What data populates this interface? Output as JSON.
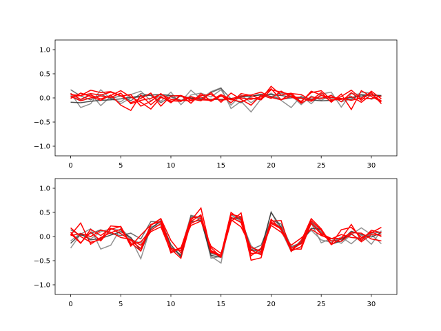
{
  "chart_data": [
    {
      "type": "line",
      "title": "",
      "xlabel": "",
      "ylabel": "",
      "xlim": [
        -1.55,
        32.55
      ],
      "ylim": [
        -1.2,
        1.2
      ],
      "xticks": [
        0,
        5,
        10,
        15,
        20,
        25,
        30
      ],
      "xtick_labels": [
        "0",
        "5",
        "10",
        "15",
        "20",
        "25",
        "30"
      ],
      "yticks": [
        1.0,
        0.5,
        0.0,
        -0.5,
        -1.0
      ],
      "ytick_labels": [
        "1.0",
        "0.5",
        "0.0",
        "−0.5",
        "−1.0"
      ],
      "grid": false,
      "x": [
        0,
        1,
        2,
        3,
        4,
        5,
        6,
        7,
        8,
        9,
        10,
        11,
        12,
        13,
        14,
        15,
        16,
        17,
        18,
        19,
        20,
        21,
        22,
        23,
        24,
        25,
        26,
        27,
        28,
        29,
        30,
        31
      ],
      "series": [
        {
          "color": "#808080",
          "values": [
            0.1,
            -0.2,
            -0.12,
            0.17,
            -0.02,
            -0.08,
            0.07,
            0.14,
            -0.06,
            0.05,
            0.02,
            -0.08,
            0.16,
            -0.02,
            0.13,
            0.21,
            -0.22,
            -0.07,
            -0.29,
            -0.02,
            0.1,
            -0.05,
            -0.2,
            0.04,
            -0.12,
            0.08,
            0.12,
            -0.19,
            0.09,
            0.07,
            -0.03,
            0.05
          ]
        },
        {
          "color": "#808080",
          "values": [
            0.05,
            -0.05,
            0.09,
            -0.16,
            0.03,
            -0.12,
            0.0,
            0.02,
            0.06,
            -0.07,
            0.12,
            -0.14,
            0.06,
            0.1,
            0.02,
            0.17,
            -0.15,
            0.06,
            -0.1,
            0.05,
            0.03,
            0.1,
            0.05,
            -0.14,
            0.04,
            -0.05,
            0.06,
            -0.08,
            -0.02,
            0.12,
            0.1,
            -0.12
          ]
        },
        {
          "color": "#555555",
          "values": [
            0.17,
            0.04,
            -0.04,
            0.07,
            -0.01,
            0.04,
            -0.06,
            0.09,
            0.05,
            -0.1,
            0.03,
            -0.05,
            0.0,
            -0.04,
            0.11,
            0.2,
            -0.02,
            -0.1,
            0.03,
            0.08,
            0.03,
            -0.03,
            0.0,
            0.02,
            -0.02,
            0.0,
            0.0,
            -0.02,
            -0.03,
            0.07,
            0.07,
            0.03
          ]
        },
        {
          "color": "#333333",
          "values": [
            -0.09,
            -0.1,
            -0.07,
            -0.05,
            -0.04,
            -0.02,
            0.01,
            0.04,
            0.06,
            0.07,
            0.05,
            0.03,
            0.0,
            -0.02,
            -0.03,
            -0.03,
            -0.01,
            0.02,
            0.04,
            0.06,
            0.07,
            0.05,
            0.02,
            -0.01,
            -0.04,
            -0.06,
            -0.05,
            -0.02,
            0.01,
            0.04,
            0.06,
            0.05
          ]
        },
        {
          "color": "#ff0000",
          "values": [
            0.02,
            0.05,
            0.16,
            0.11,
            0.13,
            0.05,
            -0.1,
            -0.01,
            0.1,
            -0.17,
            0.04,
            0.05,
            -0.11,
            0.09,
            -0.06,
            0.05,
            -0.1,
            0.09,
            0.05,
            -0.02,
            0.24,
            0.06,
            0.1,
            -0.09,
            0.14,
            0.06,
            -0.07,
            0.03,
            0.16,
            -0.02,
            -0.01,
            0.04
          ]
        },
        {
          "color": "#ff0000",
          "values": [
            0.07,
            0.05,
            0.09,
            0.06,
            0.12,
            0.04,
            0.07,
            -0.17,
            -0.07,
            0.09,
            -0.09,
            0.05,
            -0.02,
            -0.06,
            0.11,
            -0.09,
            0.1,
            -0.03,
            -0.15,
            0.06,
            -0.01,
            0.14,
            0.02,
            -0.07,
            0.11,
            0.15,
            -0.04,
            -0.03,
            0.03,
            -0.09,
            0.07,
            -0.06
          ]
        },
        {
          "color": "#ff0000",
          "values": [
            0.09,
            -0.03,
            0.06,
            -0.02,
            0.05,
            0.15,
            0.02,
            -0.09,
            -0.23,
            0.01,
            -0.06,
            -0.07,
            0.03,
            -0.04,
            -0.05,
            0.07,
            -0.03,
            -0.08,
            0.0,
            -0.04,
            0.17,
            0.12,
            0.07,
            -0.11,
            0.02,
            -0.01,
            0.05,
            -0.08,
            0.11,
            -0.05,
            0.14,
            -0.02
          ]
        },
        {
          "color": "#ff0000",
          "values": [
            -0.01,
            0.1,
            0.03,
            -0.05,
            0.06,
            -0.15,
            -0.26,
            0.06,
            -0.14,
            0.03,
            -0.1,
            0.05,
            -0.05,
            0.05,
            0.07,
            -0.05,
            -0.02,
            0.04,
            0.06,
            0.12,
            0.01,
            -0.04,
            0.09,
            0.07,
            -0.05,
            0.11,
            -0.09,
            0.08,
            -0.24,
            0.15,
            0.03,
            -0.08
          ]
        },
        {
          "color": "#ff0000",
          "values": [
            0.03,
            -0.06,
            0.0,
            0.04,
            0.01,
            0.1,
            -0.12,
            -0.05,
            -0.01,
            0.08,
            -0.03,
            -0.05,
            -0.06,
            0.02,
            -0.07,
            0.04,
            -0.04,
            0.0,
            -0.03,
            0.02,
            0.19,
            -0.04,
            0.03,
            0.0,
            -0.07,
            0.05,
            0.01,
            -0.01,
            -0.05,
            0.0,
            0.11,
            -0.12
          ]
        }
      ]
    },
    {
      "type": "line",
      "title": "",
      "xlabel": "",
      "ylabel": "",
      "xlim": [
        -1.55,
        32.55
      ],
      "ylim": [
        -1.2,
        1.2
      ],
      "xticks": [
        0,
        5,
        10,
        15,
        20,
        25,
        30
      ],
      "xtick_labels": [
        "0",
        "5",
        "10",
        "15",
        "20",
        "25",
        "30"
      ],
      "yticks": [
        1.0,
        0.5,
        0.0,
        -0.5,
        -1.0
      ],
      "ytick_labels": [
        "1.0",
        "0.5",
        "0.0",
        "−0.5",
        "−1.0"
      ],
      "grid": false,
      "x": [
        0,
        1,
        2,
        3,
        4,
        5,
        6,
        7,
        8,
        9,
        10,
        11,
        12,
        13,
        14,
        15,
        16,
        17,
        18,
        19,
        20,
        21,
        22,
        23,
        24,
        25,
        26,
        27,
        28,
        29,
        30,
        31
      ],
      "series": [
        {
          "color": "#808080",
          "values": [
            -0.24,
            0.05,
            0.16,
            -0.26,
            -0.18,
            0.17,
            -0.04,
            -0.46,
            0.2,
            0.24,
            -0.33,
            -0.28,
            0.44,
            0.39,
            -0.41,
            -0.55,
            0.45,
            0.34,
            -0.19,
            -0.37,
            0.28,
            0.21,
            -0.24,
            -0.12,
            0.28,
            -0.13,
            -0.04,
            -0.14,
            0.04,
            0.18,
            0.04,
            -0.15
          ]
        },
        {
          "color": "#808080",
          "values": [
            -0.09,
            0.07,
            -0.05,
            0.1,
            0.16,
            0.13,
            -0.06,
            -0.14,
            0.19,
            0.3,
            -0.21,
            -0.41,
            0.4,
            0.4,
            -0.45,
            -0.41,
            0.45,
            0.31,
            -0.26,
            -0.33,
            0.51,
            0.12,
            -0.31,
            -0.07,
            0.13,
            -0.07,
            -0.12,
            -0.01,
            -0.15,
            0.03,
            -0.16,
            0.12
          ]
        },
        {
          "color": "#555555",
          "values": [
            0.14,
            0.02,
            0.06,
            0.14,
            0.06,
            0.02,
            0.07,
            -0.05,
            0.31,
            0.3,
            -0.23,
            -0.38,
            0.43,
            0.36,
            -0.35,
            -0.41,
            0.37,
            0.4,
            -0.27,
            -0.18,
            0.34,
            0.26,
            -0.21,
            -0.13,
            0.3,
            0.09,
            -0.09,
            -0.06,
            0.05,
            -0.08,
            0.07,
            0.09
          ]
        },
        {
          "color": "#333333",
          "values": [
            -0.14,
            0.05,
            -0.07,
            -0.04,
            0.03,
            0.1,
            -0.02,
            -0.3,
            0.16,
            0.33,
            -0.17,
            -0.42,
            0.3,
            0.34,
            -0.39,
            -0.43,
            0.38,
            0.38,
            -0.29,
            -0.27,
            0.5,
            0.19,
            -0.28,
            -0.14,
            0.17,
            0.15,
            -0.16,
            -0.09,
            0.11,
            0.04,
            -0.01,
            0.08
          ]
        },
        {
          "color": "#ff0000",
          "values": [
            0.18,
            0.0,
            -0.12,
            -0.06,
            0.22,
            0.2,
            -0.2,
            0.03,
            0.24,
            0.37,
            -0.08,
            -0.34,
            0.33,
            0.59,
            -0.3,
            -0.43,
            0.46,
            0.41,
            -0.49,
            -0.44,
            0.32,
            0.33,
            -0.31,
            -0.09,
            0.37,
            0.16,
            -0.16,
            0.14,
            0.19,
            -0.02,
            0.08,
            0.19
          ]
        },
        {
          "color": "#ff0000",
          "values": [
            0.06,
            -0.14,
            0.15,
            0.02,
            0.17,
            0.06,
            -0.08,
            -0.25,
            0.25,
            0.31,
            -0.26,
            -0.45,
            0.31,
            0.45,
            -0.33,
            -0.38,
            0.5,
            0.34,
            -0.28,
            -0.38,
            0.36,
            0.14,
            -0.24,
            -0.15,
            0.33,
            0.13,
            -0.17,
            -0.04,
            0.25,
            -0.08,
            0.13,
            0.08
          ]
        },
        {
          "color": "#ff0000",
          "values": [
            0.03,
            0.28,
            -0.16,
            -0.02,
            0.08,
            0.15,
            -0.13,
            -0.3,
            0.23,
            0.37,
            -0.25,
            -0.29,
            0.27,
            0.38,
            -0.23,
            -0.43,
            0.31,
            0.49,
            -0.4,
            -0.24,
            0.27,
            0.16,
            -0.3,
            -0.21,
            0.27,
            0.06,
            -0.04,
            -0.04,
            0.08,
            0.07,
            -0.05,
            -0.09
          ]
        },
        {
          "color": "#ff0000",
          "values": [
            0.09,
            -0.13,
            0.09,
            -0.09,
            0.15,
            0.21,
            -0.17,
            -0.11,
            0.13,
            0.27,
            -0.34,
            -0.24,
            0.38,
            0.42,
            -0.29,
            -0.39,
            0.4,
            0.29,
            -0.35,
            -0.34,
            0.3,
            0.18,
            -0.26,
            -0.26,
            0.28,
            0.04,
            -0.09,
            -0.1,
            0.06,
            -0.11,
            0.04,
            0.03
          ]
        },
        {
          "color": "#ff0000",
          "values": [
            0.02,
            0.06,
            0.0,
            0.13,
            0.09,
            -0.02,
            -0.06,
            -0.18,
            0.1,
            0.2,
            -0.31,
            -0.23,
            0.23,
            0.32,
            -0.2,
            -0.35,
            0.35,
            0.2,
            -0.22,
            -0.31,
            0.23,
            0.09,
            -0.18,
            -0.03,
            0.15,
            0.02,
            -0.05,
            0.04,
            -0.02,
            -0.04,
            0.1,
            0.0
          ]
        }
      ]
    }
  ]
}
